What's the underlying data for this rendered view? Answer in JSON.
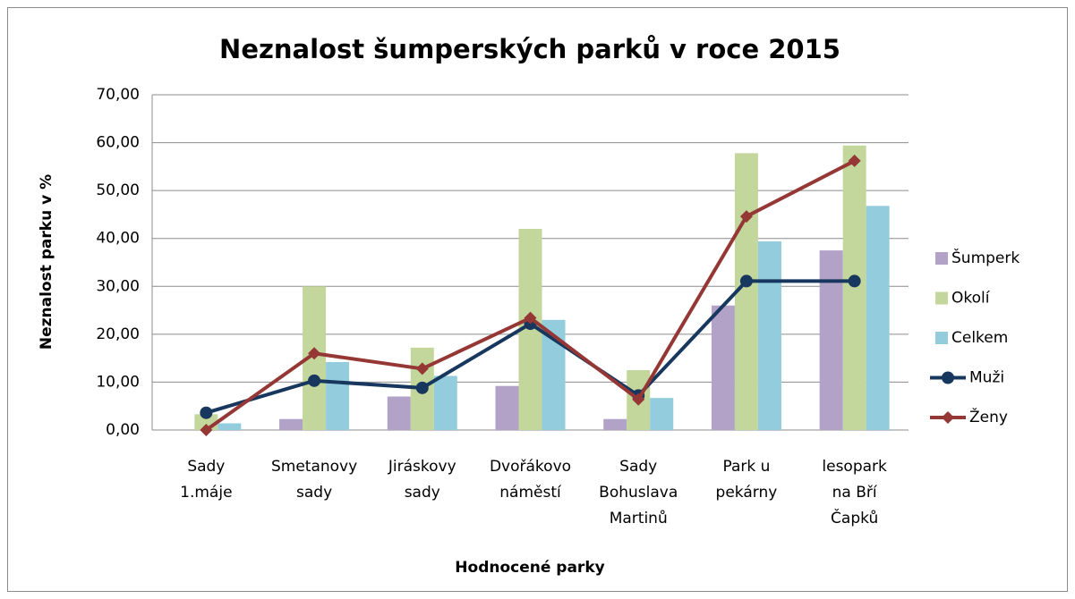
{
  "chart_data": {
    "type": "bar",
    "title": "Neznalost šumperských parků v roce 2015",
    "x_label": "Hodnocené parky",
    "y_label": "Neznalost parku v %",
    "categories": [
      [
        "Sady",
        "1.máje"
      ],
      [
        "Smetanovy",
        "sady"
      ],
      [
        "Jiráskovy",
        "sady"
      ],
      [
        "Dvořákovo",
        "náměstí"
      ],
      [
        "Sady",
        "Bohuslava",
        "Martinů"
      ],
      [
        "Park u",
        "pekárny"
      ],
      [
        "lesopark",
        "na Bří",
        "Čapků"
      ]
    ],
    "series": [
      {
        "name": "Šumperk",
        "type": "bar",
        "color": "#b3a2c7",
        "values": [
          0,
          2.3,
          7.0,
          9.2,
          2.3,
          26.0,
          37.5
        ]
      },
      {
        "name": "Okolí",
        "type": "bar",
        "color": "#c3d69b",
        "values": [
          3.3,
          30.0,
          17.2,
          42.0,
          12.5,
          57.8,
          59.4
        ]
      },
      {
        "name": "Celkem",
        "type": "bar",
        "color": "#93cddd",
        "values": [
          1.4,
          14.2,
          11.3,
          23.0,
          6.7,
          39.4,
          46.8
        ]
      },
      {
        "name": "Muži",
        "type": "line",
        "marker": "circle",
        "color": "#17375e",
        "values": [
          3.6,
          10.3,
          8.8,
          22.2,
          7.2,
          31.1,
          31.1
        ]
      },
      {
        "name": "Ženy",
        "type": "line",
        "marker": "diamond",
        "color": "#953735",
        "values": [
          0,
          16.0,
          12.8,
          23.4,
          6.4,
          44.6,
          56.2
        ]
      }
    ],
    "ylim": [
      0,
      70
    ],
    "yticks": [
      {
        "value": 0,
        "label": "0,00"
      },
      {
        "value": 10,
        "label": "10,00"
      },
      {
        "value": 20,
        "label": "20,00"
      },
      {
        "value": 30,
        "label": "30,00"
      },
      {
        "value": 40,
        "label": "40,00"
      },
      {
        "value": 50,
        "label": "50,00"
      },
      {
        "value": 60,
        "label": "60,00"
      },
      {
        "value": 70,
        "label": "70,00"
      }
    ],
    "grid": true,
    "legend": "right"
  }
}
